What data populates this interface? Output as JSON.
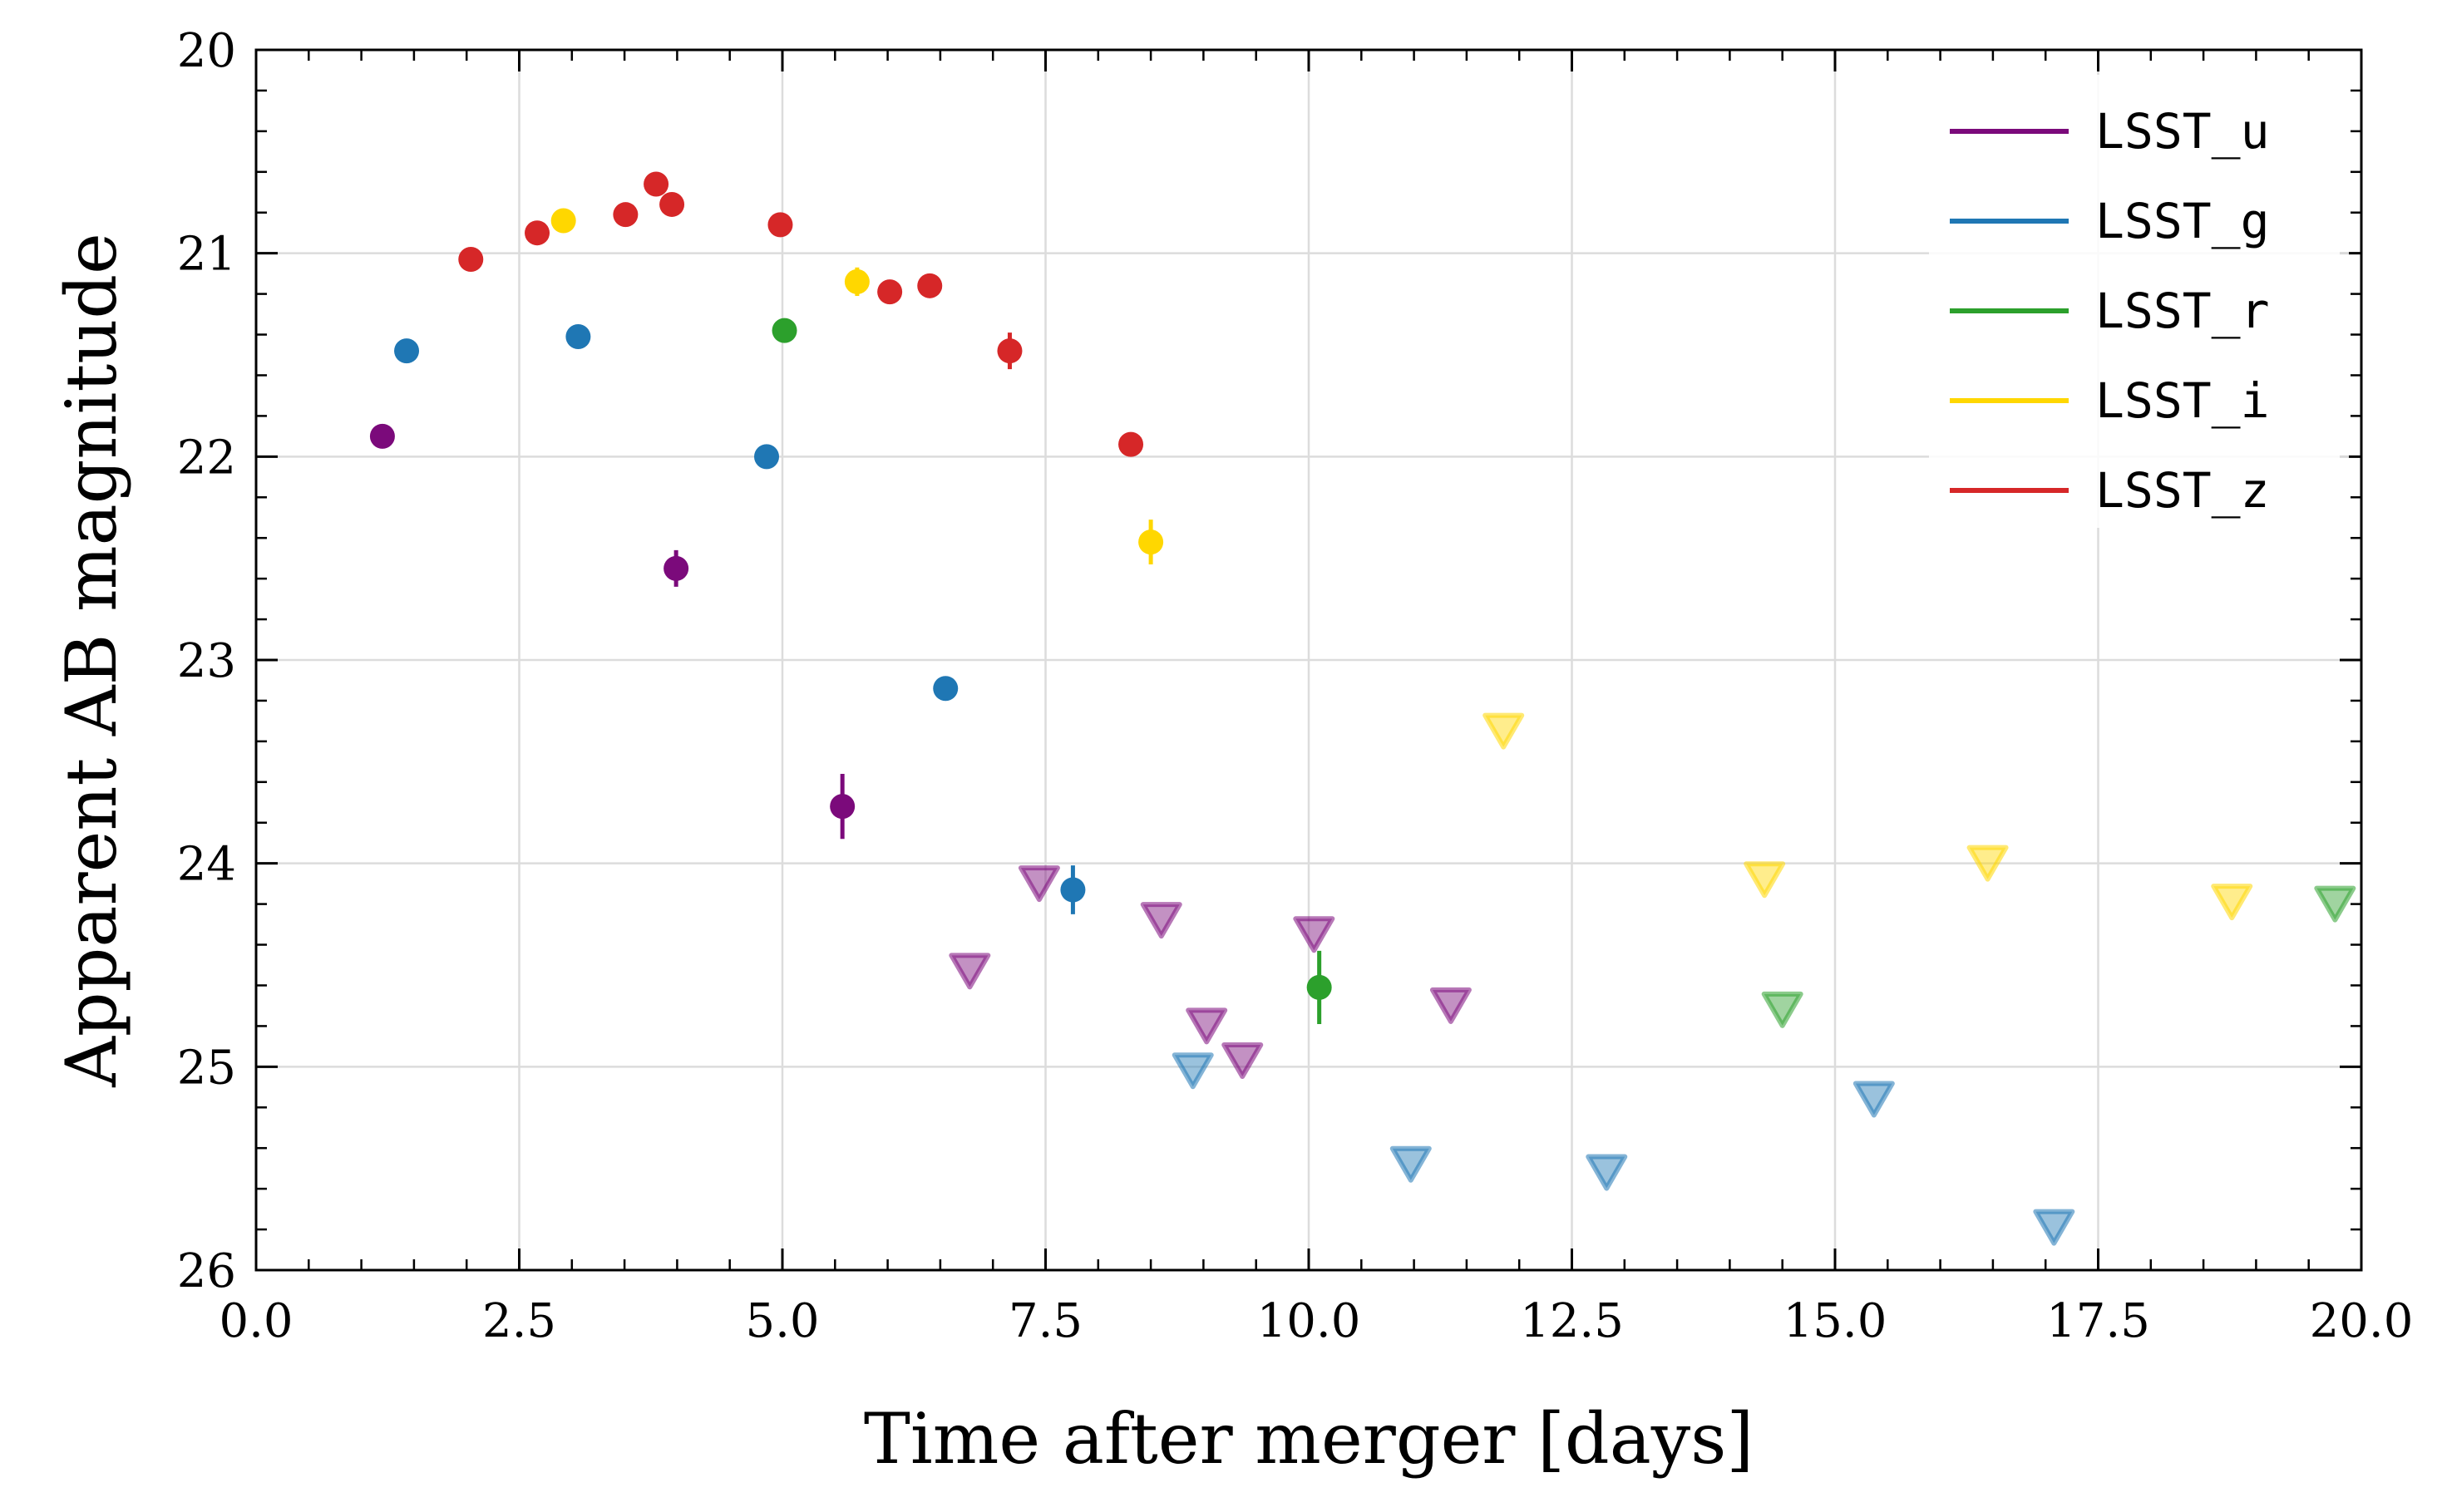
{
  "chart_data": {
    "type": "scatter",
    "title": "",
    "xlabel": "Time after merger [days]",
    "ylabel": "Apparent AB magnitude",
    "xlim": [
      0,
      20
    ],
    "ylim": [
      26,
      20
    ],
    "y_inverted": true,
    "grid": true,
    "legend_position": "top-right",
    "x_ticks": [
      "0.0",
      "2.5",
      "5.0",
      "7.5",
      "10.0",
      "12.5",
      "15.0",
      "17.5",
      "20.0"
    ],
    "y_ticks": [
      "20",
      "21",
      "22",
      "23",
      "24",
      "25",
      "26"
    ],
    "series": [
      {
        "name": "LSST_u",
        "color": "#7b0a7b",
        "detections": [
          {
            "x": 1.2,
            "y": 21.9,
            "err": 0.04
          },
          {
            "x": 3.99,
            "y": 22.55,
            "err": 0.09
          },
          {
            "x": 5.57,
            "y": 23.72,
            "err": 0.16
          }
        ],
        "upper_limits": [
          {
            "x": 6.78,
            "y": 24.53
          },
          {
            "x": 7.44,
            "y": 24.1
          },
          {
            "x": 8.6,
            "y": 24.28
          },
          {
            "x": 9.03,
            "y": 24.8
          },
          {
            "x": 9.37,
            "y": 24.97
          },
          {
            "x": 10.05,
            "y": 24.35
          },
          {
            "x": 11.35,
            "y": 24.7
          }
        ]
      },
      {
        "name": "LSST_g",
        "color": "#1f77b4",
        "detections": [
          {
            "x": 1.43,
            "y": 21.48,
            "err": 0.03
          },
          {
            "x": 3.06,
            "y": 21.41,
            "err": 0.03
          },
          {
            "x": 4.85,
            "y": 22.0,
            "err": 0.04
          },
          {
            "x": 6.55,
            "y": 23.14,
            "err": 0.05
          },
          {
            "x": 7.76,
            "y": 24.13,
            "err": 0.12
          }
        ],
        "upper_limits": [
          {
            "x": 8.9,
            "y": 25.02
          },
          {
            "x": 10.97,
            "y": 25.48
          },
          {
            "x": 12.83,
            "y": 25.52
          },
          {
            "x": 15.37,
            "y": 25.16
          },
          {
            "x": 17.08,
            "y": 25.79
          }
        ]
      },
      {
        "name": "LSST_r",
        "color": "#2ca02c",
        "detections": [
          {
            "x": 5.02,
            "y": 21.38,
            "err": 0.04
          },
          {
            "x": 10.1,
            "y": 24.61,
            "err": 0.18
          }
        ],
        "upper_limits": [
          {
            "x": 14.5,
            "y": 24.72
          },
          {
            "x": 19.75,
            "y": 24.2
          }
        ]
      },
      {
        "name": "LSST_i",
        "color": "#ffd700",
        "detections": [
          {
            "x": 2.92,
            "y": 20.84,
            "err": 0.03
          },
          {
            "x": 5.71,
            "y": 21.14,
            "err": 0.07
          },
          {
            "x": 8.5,
            "y": 22.42,
            "err": 0.11
          }
        ],
        "upper_limits": [
          {
            "x": 11.85,
            "y": 23.35
          },
          {
            "x": 14.33,
            "y": 24.08
          },
          {
            "x": 16.45,
            "y": 24.0
          },
          {
            "x": 18.77,
            "y": 24.19
          }
        ]
      },
      {
        "name": "LSST_z",
        "color": "#d62728",
        "detections": [
          {
            "x": 2.04,
            "y": 21.03,
            "err": 0.03
          },
          {
            "x": 2.67,
            "y": 20.9,
            "err": 0.03
          },
          {
            "x": 3.51,
            "y": 20.81,
            "err": 0.03
          },
          {
            "x": 3.8,
            "y": 20.66,
            "err": 0.03
          },
          {
            "x": 3.95,
            "y": 20.76,
            "err": 0.03
          },
          {
            "x": 4.98,
            "y": 20.86,
            "err": 0.03
          },
          {
            "x": 6.02,
            "y": 21.19,
            "err": 0.03
          },
          {
            "x": 6.4,
            "y": 21.16,
            "err": 0.03
          },
          {
            "x": 7.16,
            "y": 21.48,
            "err": 0.09
          },
          {
            "x": 8.31,
            "y": 21.94,
            "err": 0.05
          }
        ],
        "upper_limits": []
      }
    ]
  }
}
